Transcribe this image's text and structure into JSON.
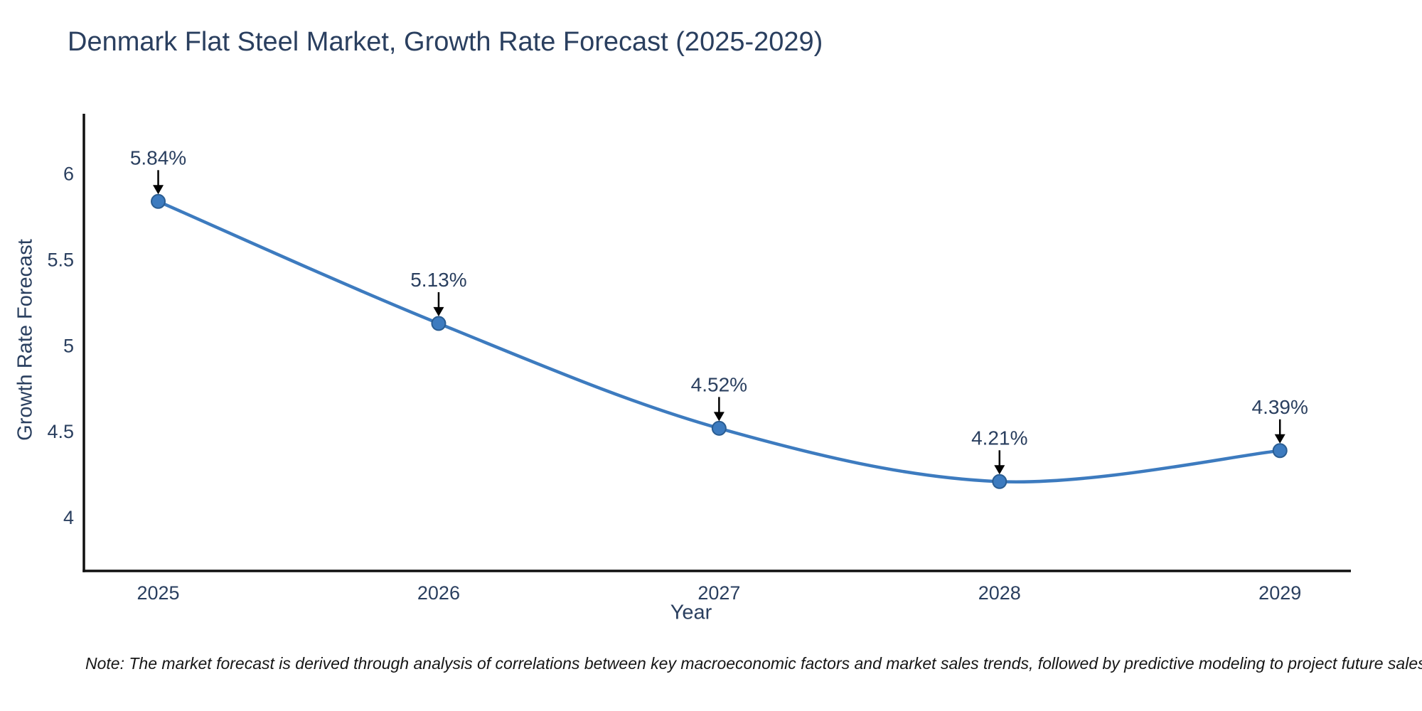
{
  "chart_data": {
    "type": "line",
    "title": "Denmark Flat Steel Market, Growth Rate Forecast (2025-2029)",
    "xlabel": "Year",
    "ylabel": "Growth Rate Forecast",
    "x": [
      2025,
      2026,
      2027,
      2028,
      2029
    ],
    "y": [
      5.84,
      5.13,
      4.52,
      4.21,
      4.39
    ],
    "point_labels": [
      "5.84%",
      "5.13%",
      "4.52%",
      "4.21%",
      "4.39%"
    ],
    "xticks": [
      "2025",
      "2026",
      "2027",
      "2028",
      "2029"
    ],
    "yticks": [
      "4",
      "4.5",
      "5",
      "5.5",
      "6"
    ],
    "ytick_values": [
      4,
      4.5,
      5,
      5.5,
      6
    ],
    "xlim": [
      2024.735,
      2029.253
    ],
    "ylim": [
      3.69,
      6.35
    ],
    "line_shape": "spline",
    "grid": false,
    "legend_position": "none",
    "colors": {
      "line": "#3d7bbf",
      "marker_fill": "#3d7bbf",
      "marker_edge": "#2a5d92",
      "axis_line": "#101010",
      "tick_text": "#2a3f5f",
      "annotation_text": "#2a3f5f",
      "annotation_arrow": "#000000",
      "background": "#ffffff"
    }
  },
  "note": "Note: The market forecast is derived through analysis of correlations between key macroeconomic factors and market sales trends, followed by predictive modeling to project future sales"
}
